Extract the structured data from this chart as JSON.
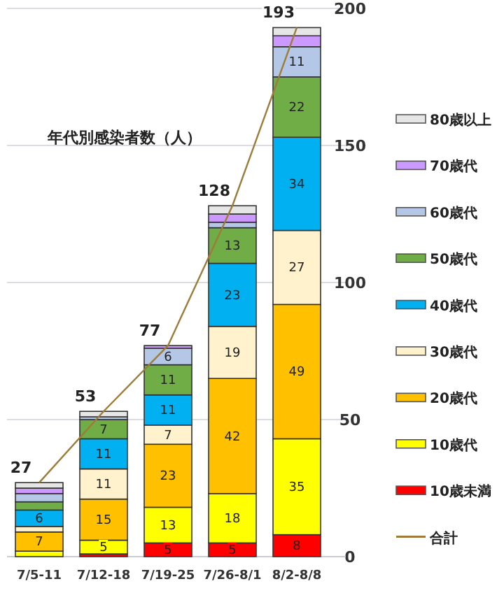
{
  "chart_data": {
    "type": "bar",
    "stacked": true,
    "title": "年代別感染者数（人）",
    "categories": [
      "7/5-11",
      "7/12-18",
      "7/19-25",
      "7/26-8/1",
      "8/2-8/8"
    ],
    "series": [
      {
        "name": "10歳未満",
        "color": "#ff0000",
        "values": [
          0,
          1,
          5,
          5,
          8
        ],
        "value_labels": [
          null,
          null,
          "5",
          "5",
          "8"
        ]
      },
      {
        "name": "10歳代",
        "color": "#ffff00",
        "values": [
          2,
          5,
          13,
          18,
          35
        ],
        "value_labels": [
          null,
          "5",
          "13",
          "18",
          "35"
        ]
      },
      {
        "name": "20歳代",
        "color": "#ffc000",
        "values": [
          7,
          15,
          23,
          42,
          49
        ],
        "value_labels": [
          "7",
          "15",
          "23",
          "42",
          "49"
        ]
      },
      {
        "name": "30歳代",
        "color": "#fff2cc",
        "values": [
          2,
          11,
          7,
          19,
          27
        ],
        "value_labels": [
          null,
          "11",
          "7",
          "19",
          "27"
        ]
      },
      {
        "name": "40歳代",
        "color": "#00b0f0",
        "values": [
          6,
          11,
          11,
          23,
          34
        ],
        "value_labels": [
          "6",
          "11",
          "11",
          "23",
          "34"
        ]
      },
      {
        "name": "50歳代",
        "color": "#70ad47",
        "values": [
          3,
          7,
          11,
          13,
          22
        ],
        "value_labels": [
          null,
          "7",
          "11",
          "13",
          "22"
        ]
      },
      {
        "name": "60歳代",
        "color": "#b4c7e7",
        "values": [
          3,
          1,
          6,
          2,
          11
        ],
        "value_labels": [
          null,
          null,
          "6",
          null,
          "11"
        ]
      },
      {
        "name": "70歳代",
        "color": "#cc99ff",
        "values": [
          2,
          0,
          1,
          3,
          4
        ],
        "value_labels": [
          null,
          null,
          null,
          null,
          null
        ]
      },
      {
        "name": "80歳以上",
        "color": "#e7e6e6",
        "values": [
          2,
          2,
          0,
          3,
          3
        ],
        "value_labels": [
          null,
          null,
          null,
          null,
          null
        ]
      },
      {
        "name": "合計",
        "type": "line",
        "color": "#9c7c38",
        "values": [
          27,
          53,
          77,
          128,
          193
        ]
      }
    ],
    "totals": [
      "27",
      "53",
      "77",
      "128",
      "193"
    ],
    "ylim": [
      0,
      200
    ],
    "yticks": [
      0,
      50,
      100,
      150,
      200
    ],
    "grid": "y",
    "legend": "right"
  }
}
